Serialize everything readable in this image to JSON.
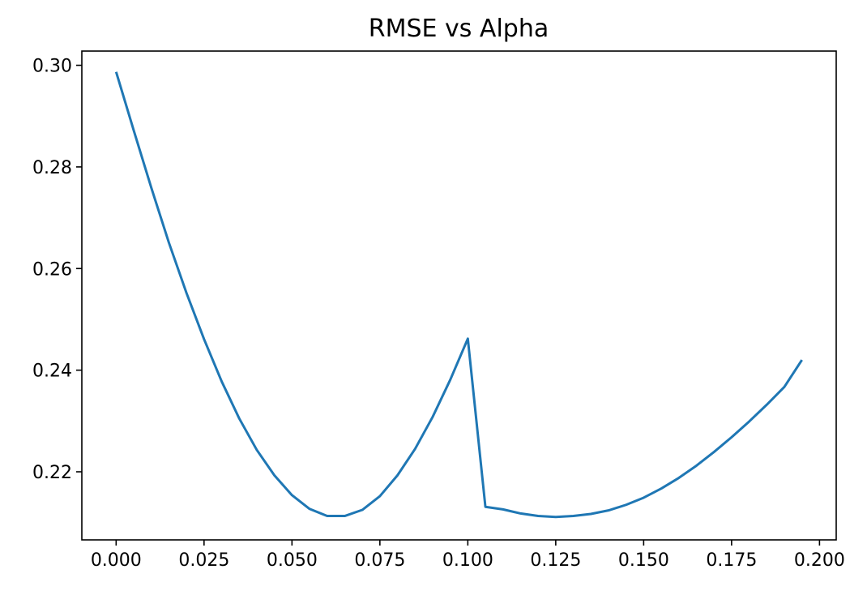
{
  "chart_data": {
    "type": "line",
    "title": "RMSE vs Alpha",
    "xlabel": "",
    "ylabel": "",
    "xlim": [
      -0.00975,
      0.20475
    ],
    "ylim": [
      0.2066,
      0.3028
    ],
    "xticks": [
      0.0,
      0.025,
      0.05,
      0.075,
      0.1,
      0.125,
      0.15,
      0.175,
      0.2
    ],
    "xtick_labels": [
      "0.000",
      "0.025",
      "0.050",
      "0.075",
      "0.100",
      "0.125",
      "0.150",
      "0.175",
      "0.200"
    ],
    "yticks": [
      0.22,
      0.24,
      0.26,
      0.28,
      0.3
    ],
    "ytick_labels": [
      "0.22",
      "0.24",
      "0.26",
      "0.28",
      "0.30"
    ],
    "grid": false,
    "series": [
      {
        "color": "#1f77b4",
        "x": [
          0.0,
          0.005,
          0.01,
          0.015,
          0.02,
          0.025,
          0.03,
          0.035,
          0.04,
          0.045,
          0.05,
          0.055,
          0.06,
          0.065,
          0.07,
          0.075,
          0.08,
          0.085,
          0.09,
          0.095,
          0.1,
          0.105,
          0.11,
          0.115,
          0.12,
          0.125,
          0.13,
          0.135,
          0.14,
          0.145,
          0.15,
          0.155,
          0.16,
          0.165,
          0.17,
          0.175,
          0.18,
          0.185,
          0.19,
          0.195
        ],
        "y": [
          0.2987,
          0.2872,
          0.2759,
          0.2651,
          0.2552,
          0.2461,
          0.2378,
          0.2305,
          0.2243,
          0.2193,
          0.2154,
          0.2127,
          0.2113,
          0.2113,
          0.2125,
          0.2152,
          0.2193,
          0.2245,
          0.2308,
          0.2381,
          0.2462,
          0.2131,
          0.2126,
          0.2118,
          0.2113,
          0.2111,
          0.2113,
          0.2117,
          0.2124,
          0.2135,
          0.2149,
          0.2167,
          0.2188,
          0.2212,
          0.2239,
          0.2268,
          0.2299,
          0.2332,
          0.2367,
          0.242
        ]
      }
    ]
  }
}
